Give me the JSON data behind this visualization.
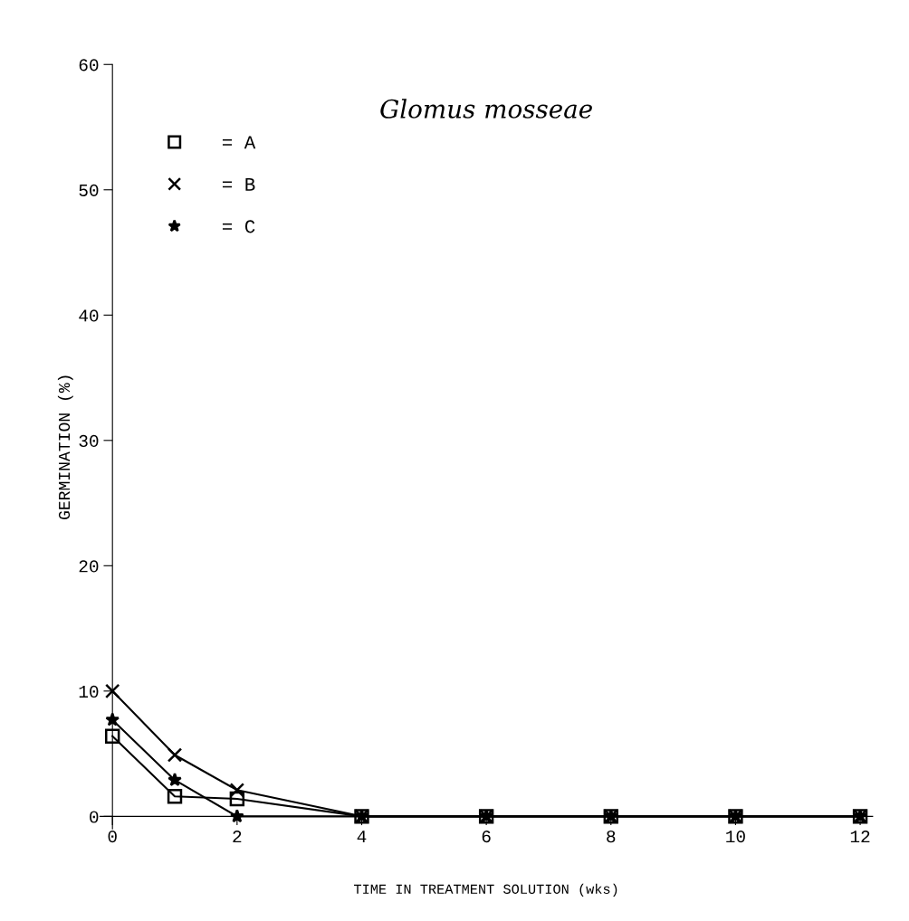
{
  "chart_data": {
    "type": "line",
    "title": "Glomus mosseae",
    "xlabel": "TIME IN TREATMENT SOLUTION (wks)",
    "ylabel": "GERMINATION (%)",
    "x": [
      0,
      1,
      2,
      4,
      6,
      8,
      10,
      12
    ],
    "series": [
      {
        "name": "= A",
        "color": "#000000",
        "marker": "square",
        "values": [
          6.4,
          1.6,
          1.4,
          0,
          0,
          0,
          0,
          0
        ]
      },
      {
        "name": "= B",
        "color": "#000000",
        "marker": "cross",
        "values": [
          10,
          4.9,
          2.1,
          0,
          0,
          0,
          0,
          0
        ]
      },
      {
        "name": "= C",
        "color": "#000000",
        "marker": "star",
        "values": [
          7.7,
          2.9,
          0,
          0,
          0,
          0,
          0,
          0
        ]
      }
    ],
    "xlim": [
      -0.2,
      12.2
    ],
    "ylim": [
      -1,
      60
    ],
    "xticks": [
      0,
      2,
      4,
      6,
      8,
      10,
      12
    ],
    "yticks": [
      0,
      10,
      20,
      30,
      40,
      50,
      60
    ],
    "grid": false,
    "legend": "top left",
    "line_style": "solid"
  }
}
